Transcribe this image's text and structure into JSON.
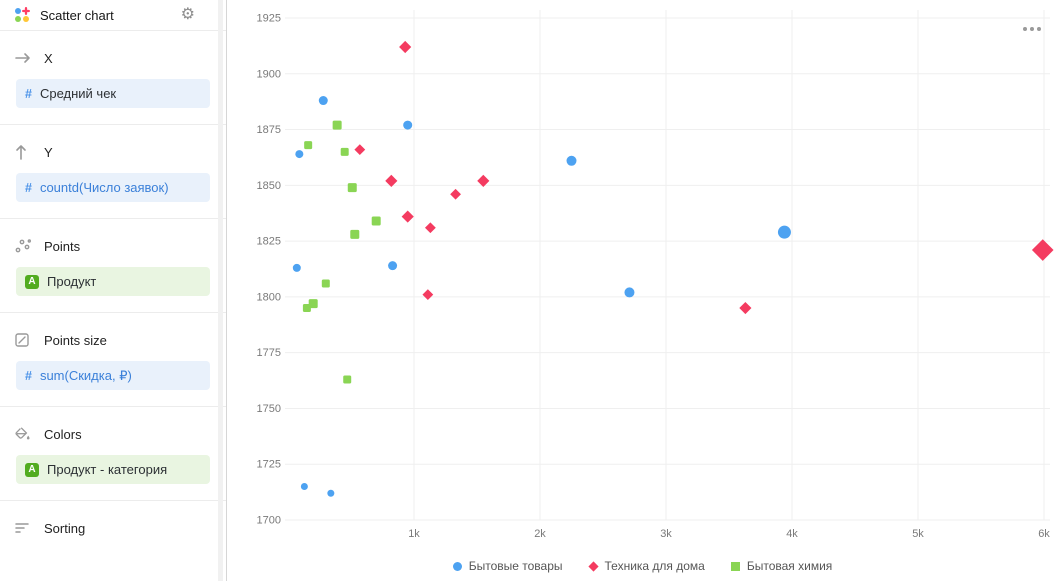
{
  "app": {
    "title": "Scatter chart"
  },
  "icons": {
    "hash": "#",
    "dimension_badge": "A",
    "gear": "⚙"
  },
  "sidebar": {
    "sections": [
      {
        "label": "X",
        "chip": {
          "text": "Средний чек",
          "style": "blue",
          "formula": false
        }
      },
      {
        "label": "Y",
        "chip": {
          "text": "countd(Число заявок)",
          "style": "blue",
          "formula": true
        }
      },
      {
        "label": "Points",
        "chip": {
          "text": "Продукт",
          "style": "green",
          "formula": false
        }
      },
      {
        "label": "Points size",
        "chip": {
          "text": "sum(Скидка, ₽)",
          "style": "blue",
          "formula": true
        }
      },
      {
        "label": "Colors",
        "chip": {
          "text": "Продукт - категория",
          "style": "green",
          "formula": false
        }
      },
      {
        "label": "Sorting"
      }
    ]
  },
  "chart_data": {
    "type": "scatter",
    "title": "",
    "xlabel": "",
    "ylabel": "",
    "xlim": [
      0,
      6100
    ],
    "ylim": [
      1700,
      1925
    ],
    "grid": true,
    "legend_position": "bottom",
    "x_ticks": [
      "1k",
      "2k",
      "3k",
      "4k",
      "5k",
      "6k"
    ],
    "x_tick_values": [
      1000,
      2000,
      3000,
      4000,
      5000,
      6000
    ],
    "y_ticks": [
      1925,
      1900,
      1875,
      1850,
      1825,
      1800,
      1775,
      1750,
      1725,
      1700
    ],
    "series": [
      {
        "name": "Бытовые товары",
        "color": "#4da2f1",
        "marker": "circle",
        "points": [
          {
            "x": 280,
            "y": 1888,
            "r": 4.5
          },
          {
            "x": 950,
            "y": 1877,
            "r": 4.5
          },
          {
            "x": 90,
            "y": 1864,
            "r": 4
          },
          {
            "x": 2250,
            "y": 1861,
            "r": 5
          },
          {
            "x": 3940,
            "y": 1829,
            "r": 6.5
          },
          {
            "x": 70,
            "y": 1813,
            "r": 4
          },
          {
            "x": 830,
            "y": 1814,
            "r": 4.5
          },
          {
            "x": 2710,
            "y": 1802,
            "r": 5
          },
          {
            "x": 130,
            "y": 1715,
            "r": 3.5
          },
          {
            "x": 340,
            "y": 1712,
            "r": 3.5
          }
        ]
      },
      {
        "name": "Техника для дома",
        "color": "#f43b60",
        "marker": "diamond",
        "points": [
          {
            "x": 930,
            "y": 1912,
            "r": 4.5
          },
          {
            "x": 570,
            "y": 1866,
            "r": 4
          },
          {
            "x": 820,
            "y": 1852,
            "r": 4.5
          },
          {
            "x": 1550,
            "y": 1852,
            "r": 4.5
          },
          {
            "x": 1330,
            "y": 1846,
            "r": 4
          },
          {
            "x": 950,
            "y": 1836,
            "r": 4.5
          },
          {
            "x": 1130,
            "y": 1831,
            "r": 4
          },
          {
            "x": 1110,
            "y": 1801,
            "r": 4
          },
          {
            "x": 3630,
            "y": 1795,
            "r": 4.5
          },
          {
            "x": 5990,
            "y": 1821,
            "r": 8
          }
        ]
      },
      {
        "name": "Бытовая химия",
        "color": "#8ad554",
        "marker": "square",
        "points": [
          {
            "x": 390,
            "y": 1877,
            "r": 4.5
          },
          {
            "x": 160,
            "y": 1868,
            "r": 4
          },
          {
            "x": 450,
            "y": 1865,
            "r": 4
          },
          {
            "x": 510,
            "y": 1849,
            "r": 4.5
          },
          {
            "x": 700,
            "y": 1834,
            "r": 4.5
          },
          {
            "x": 530,
            "y": 1828,
            "r": 4.5
          },
          {
            "x": 300,
            "y": 1806,
            "r": 4
          },
          {
            "x": 200,
            "y": 1797,
            "r": 4.5
          },
          {
            "x": 150,
            "y": 1795,
            "r": 4
          },
          {
            "x": 470,
            "y": 1763,
            "r": 4
          }
        ]
      }
    ]
  }
}
